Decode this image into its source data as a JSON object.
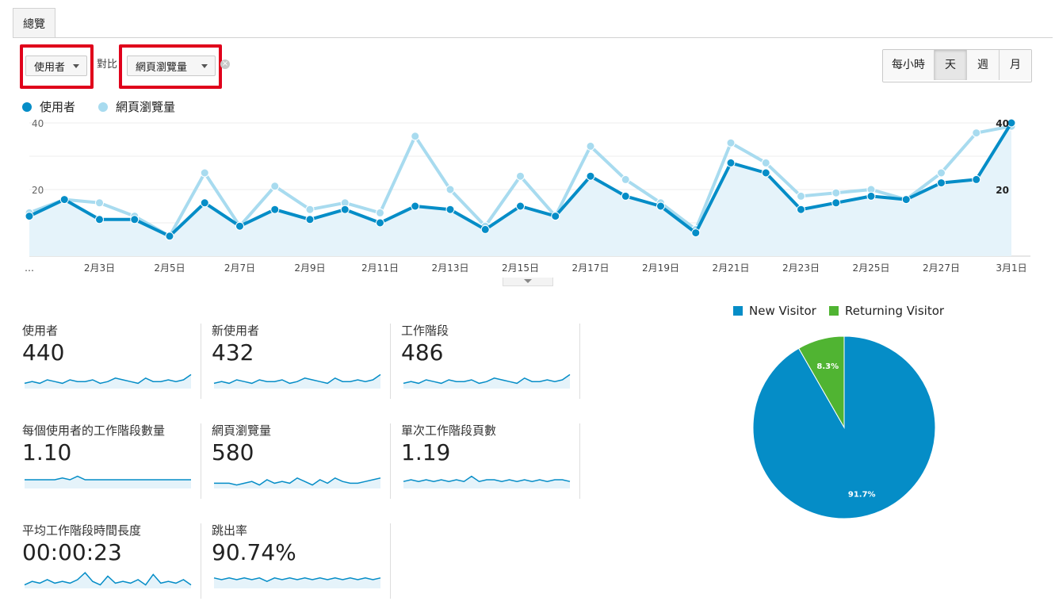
{
  "tab": {
    "label": "總覽"
  },
  "controls": {
    "metric_select": "使用者",
    "vs_label": "對比",
    "compare_select": "網頁瀏覽量",
    "remove_icon": "close-icon",
    "granularity": [
      "每小時",
      "天",
      "週",
      "月"
    ],
    "granularity_selected": "天"
  },
  "colors": {
    "users": "#058dc7",
    "pageviews": "#a8dbef",
    "new_visitor": "#058dc7",
    "returning_visitor": "#50b432"
  },
  "chart_data": [
    {
      "type": "line",
      "series": [
        {
          "name": "使用者",
          "values": [
            12,
            17,
            11,
            11,
            6,
            16,
            9,
            14,
            11,
            14,
            10,
            15,
            14,
            8,
            15,
            12,
            24,
            18,
            15,
            7,
            28,
            25,
            14,
            16,
            18,
            17,
            22,
            23,
            40
          ]
        },
        {
          "name": "網頁瀏覽量",
          "values": [
            13,
            17,
            16,
            12,
            6,
            25,
            9,
            21,
            14,
            16,
            13,
            36,
            20,
            9,
            24,
            12,
            33,
            23,
            16,
            8,
            34,
            28,
            18,
            19,
            20,
            17,
            25,
            37,
            39
          ]
        }
      ],
      "x_tick_labels": [
        "…",
        "2月3日",
        "2月5日",
        "2月7日",
        "2月9日",
        "2月11日",
        "2月13日",
        "2月15日",
        "2月17日",
        "2月19日",
        "2月21日",
        "2月23日",
        "2月25日",
        "2月27日",
        "3月1日"
      ],
      "y_tick_labels": [
        "40",
        "20"
      ],
      "end_labels": [
        "40",
        "20"
      ],
      "ylim": [
        0,
        40
      ],
      "grid": true
    },
    {
      "type": "pie",
      "categories": [
        "New Visitor",
        "Returning Visitor"
      ],
      "values": [
        91.7,
        8.3
      ],
      "slice_labels": [
        "91.7%",
        "8.3%"
      ],
      "legend": "top"
    }
  ],
  "metrics": [
    {
      "label": "使用者",
      "value": "440",
      "spark": [
        3,
        4,
        3,
        5,
        4,
        3,
        5,
        4,
        4,
        5,
        3,
        4,
        6,
        5,
        4,
        3,
        6,
        4,
        4,
        5,
        4,
        5,
        8
      ]
    },
    {
      "label": "新使用者",
      "value": "432",
      "spark": [
        3,
        4,
        3,
        5,
        4,
        3,
        5,
        4,
        4,
        5,
        3,
        4,
        6,
        5,
        4,
        3,
        6,
        4,
        4,
        5,
        4,
        5,
        8
      ]
    },
    {
      "label": "工作階段",
      "value": "486",
      "spark": [
        3,
        4,
        3,
        5,
        4,
        3,
        5,
        4,
        4,
        5,
        3,
        4,
        6,
        5,
        4,
        3,
        6,
        4,
        4,
        5,
        4,
        5,
        8
      ]
    },
    {
      "label": "每個使用者的工作階段數量",
      "value": "1.10",
      "spark": [
        5,
        5,
        5,
        5,
        5,
        6,
        5,
        7,
        5,
        5,
        5,
        5,
        5,
        5,
        5,
        5,
        5,
        5,
        5,
        5,
        5,
        5,
        5
      ]
    },
    {
      "label": "網頁瀏覽量",
      "value": "580",
      "spark": [
        3,
        3,
        3,
        2,
        3,
        4,
        2,
        5,
        3,
        4,
        3,
        6,
        4,
        2,
        5,
        3,
        6,
        4,
        3,
        3,
        4,
        5,
        6
      ]
    },
    {
      "label": "單次工作階段頁數",
      "value": "1.19",
      "spark": [
        4,
        5,
        4,
        5,
        4,
        5,
        4,
        5,
        4,
        7,
        4,
        5,
        5,
        4,
        5,
        4,
        5,
        4,
        5,
        4,
        5,
        5,
        4
      ]
    },
    {
      "label": "平均工作階段時間長度",
      "value": "00:00:23",
      "spark": [
        2,
        4,
        3,
        5,
        3,
        4,
        3,
        5,
        9,
        4,
        2,
        7,
        3,
        4,
        3,
        5,
        2,
        8,
        3,
        4,
        3,
        5,
        2
      ]
    },
    {
      "label": "跳出率",
      "value": "90.74%",
      "spark": [
        6,
        5,
        6,
        5,
        6,
        5,
        6,
        4,
        6,
        5,
        6,
        5,
        6,
        5,
        6,
        5,
        6,
        5,
        6,
        5,
        6,
        5,
        6
      ]
    }
  ]
}
